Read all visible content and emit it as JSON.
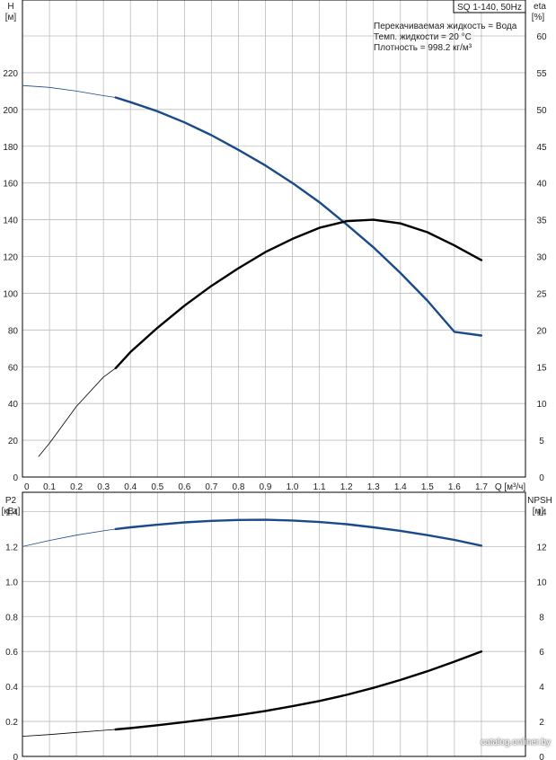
{
  "header": {
    "title": "SQ 1-140, 50Hz",
    "info": [
      "Перекачиваемая жидкость = Вода",
      "Темп. жидкости = 20 °C",
      "Плотность = 998.2 кг/м³"
    ]
  },
  "watermark": "catalog.onliner.by",
  "colors": {
    "blue": "#1a4a8a",
    "black": "#000000",
    "grid": "#bcbcbc"
  },
  "chart_data": [
    {
      "type": "line",
      "name": "upper",
      "x_title": "Q [м³/ч]",
      "xlim": [
        0,
        1.8
      ],
      "x_ticks": [
        0,
        0.1,
        0.2,
        0.3,
        0.4,
        0.5,
        0.6,
        0.7,
        0.8,
        0.9,
        1.0,
        1.1,
        1.2,
        1.3,
        1.4,
        1.5,
        1.6,
        1.7
      ],
      "x_tick_labels": [
        "0",
        "0.1",
        "0.2",
        "0.3",
        "0.4",
        "0.5",
        "0.6",
        "0.7",
        "0.8",
        "0.9",
        "1.0",
        "1.1",
        "1.2",
        "1.3",
        "1.4",
        "1.5",
        "1.6",
        "1.7"
      ],
      "y_left": {
        "label": "H",
        "unit": "[м]",
        "lim": [
          0,
          240
        ],
        "ticks": [
          0,
          20,
          40,
          60,
          80,
          100,
          120,
          140,
          160,
          180,
          200,
          220
        ]
      },
      "y_right": {
        "label": "eta",
        "unit": "[%]",
        "lim": [
          0,
          60
        ],
        "ticks": [
          0,
          5,
          10,
          15,
          20,
          25,
          30,
          35,
          40,
          45,
          50,
          55,
          60
        ]
      },
      "grid": true,
      "series": [
        {
          "axis": "left",
          "color": "#1a4a8a",
          "bold_from": 0.345,
          "x": [
            0,
            0.1,
            0.2,
            0.3,
            0.345,
            0.4,
            0.5,
            0.6,
            0.7,
            0.8,
            0.9,
            1.0,
            1.1,
            1.2,
            1.3,
            1.4,
            1.5,
            1.6,
            1.7
          ],
          "y": [
            213,
            212,
            210,
            207.5,
            206.5,
            204,
            199,
            193,
            186,
            178,
            169.5,
            160,
            149.5,
            137.5,
            125,
            111,
            96,
            79,
            77
          ]
        },
        {
          "axis": "right",
          "color": "#000000",
          "bold_from": 0.345,
          "x": [
            0.06,
            0.1,
            0.2,
            0.3,
            0.345,
            0.4,
            0.5,
            0.6,
            0.7,
            0.8,
            0.9,
            1.0,
            1.1,
            1.2,
            1.3,
            1.4,
            1.5,
            1.6,
            1.7
          ],
          "y": [
            2.8,
            4.6,
            9.6,
            13.6,
            14.8,
            17,
            20.3,
            23.3,
            26,
            28.4,
            30.6,
            32.4,
            33.9,
            34.8,
            35,
            34.5,
            33.3,
            31.5,
            29.5
          ]
        }
      ]
    },
    {
      "type": "line",
      "name": "lower",
      "xlim": [
        0,
        1.8
      ],
      "x_ticks": [
        0,
        0.1,
        0.2,
        0.3,
        0.4,
        0.5,
        0.6,
        0.7,
        0.8,
        0.9,
        1.0,
        1.1,
        1.2,
        1.3,
        1.4,
        1.5,
        1.6,
        1.7
      ],
      "y_left": {
        "label": "P2",
        "unit": "[кВт]",
        "lim": [
          0,
          1.5
        ],
        "ticks": [
          0,
          0.2,
          0.4,
          0.6,
          0.8,
          1.0,
          1.2,
          1.4
        ],
        "tick_labels": [
          "0",
          "0.2",
          "0.4",
          "0.6",
          "0.8",
          "1.0",
          "1.2",
          "1.4"
        ]
      },
      "y_right": {
        "label": "NPSH",
        "unit": "[м]",
        "lim": [
          0,
          15
        ],
        "ticks": [
          0,
          2,
          4,
          6,
          8,
          10,
          12,
          14
        ]
      },
      "grid": true,
      "series": [
        {
          "axis": "left",
          "color": "#1a4a8a",
          "bold_from": 0.345,
          "x": [
            0,
            0.1,
            0.2,
            0.3,
            0.345,
            0.4,
            0.5,
            0.6,
            0.7,
            0.8,
            0.9,
            1.0,
            1.1,
            1.2,
            1.3,
            1.4,
            1.5,
            1.6,
            1.7
          ],
          "y": [
            1.2,
            1.235,
            1.265,
            1.29,
            1.3,
            1.31,
            1.325,
            1.338,
            1.347,
            1.352,
            1.353,
            1.349,
            1.34,
            1.328,
            1.31,
            1.29,
            1.265,
            1.238,
            1.205
          ]
        },
        {
          "axis": "left",
          "color": "#000000",
          "bold_from": 0.345,
          "x": [
            0,
            0.1,
            0.2,
            0.3,
            0.345,
            0.4,
            0.5,
            0.6,
            0.7,
            0.8,
            0.9,
            1.0,
            1.1,
            1.2,
            1.3,
            1.4,
            1.5,
            1.6,
            1.7
          ],
          "y": [
            0.115,
            0.125,
            0.137,
            0.149,
            0.154,
            0.162,
            0.178,
            0.196,
            0.215,
            0.236,
            0.26,
            0.287,
            0.317,
            0.352,
            0.392,
            0.437,
            0.487,
            0.542,
            0.6
          ]
        }
      ]
    }
  ]
}
